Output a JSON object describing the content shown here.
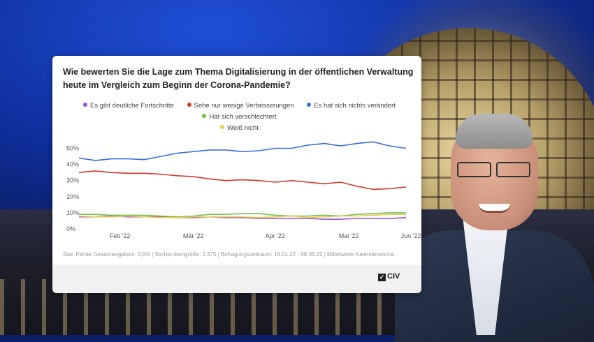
{
  "card": {
    "title": "Wie bewerten Sie die Lage zum Thema Digitalisierung in der öffentlichen Verwaltung heute im Vergleich zum Beginn der Corona-Pandemie?",
    "footnote": "Stat. Fehler Gesamtergebnis: 3,5% | Stichprobengröße: 2.475 | Befragungszeitraum: 19.01.22 - 06.06.22 | Mittelwerte Kalenderwoche",
    "logo_text": "CIV"
  },
  "chart_data": {
    "type": "line",
    "title": "Wie bewerten Sie die Lage zum Thema Digitalisierung in der öffentlichen Verwaltung heute im Vergleich zum Beginn der Corona-Pandemie?",
    "xlabel": "",
    "ylabel": "",
    "x_tick_labels": [
      "Feb '22",
      "Mär '22",
      "Apr '22",
      "Mai '22",
      "Jun '22"
    ],
    "y_tick_labels": [
      "0%",
      "10%",
      "20%",
      "30%",
      "40%",
      "50%"
    ],
    "ylim": [
      0,
      55
    ],
    "grid": false,
    "legend_position": "top",
    "x": [
      "KW3",
      "KW4",
      "KW5",
      "KW6",
      "KW7",
      "KW8",
      "KW9",
      "KW10",
      "KW11",
      "KW12",
      "KW13",
      "KW14",
      "KW15",
      "KW16",
      "KW17",
      "KW18",
      "KW19",
      "KW20",
      "KW21",
      "KW22",
      "KW23"
    ],
    "series": [
      {
        "name": "Es gibt deutliche Fortschritte",
        "color": "#9b4fd4",
        "values": [
          7.5,
          7.5,
          8,
          7.5,
          7.5,
          7.5,
          7,
          7,
          7.5,
          7,
          7,
          6.5,
          6.5,
          6.5,
          6.5,
          6,
          6,
          6.5,
          6.5,
          6.5,
          7
        ]
      },
      {
        "name": "Sehe nur wenige Verbesserungen",
        "color": "#d6372c",
        "values": [
          35,
          36,
          35,
          34.5,
          34.5,
          34,
          33,
          32.5,
          31,
          30,
          30.5,
          30,
          29,
          30,
          29,
          28,
          29,
          26.5,
          24.5,
          25,
          26
        ]
      },
      {
        "name": "Es hat sich nichts verändert",
        "color": "#3b6fdb",
        "values": [
          44,
          42.5,
          43.5,
          43.5,
          43,
          45,
          47,
          48,
          49,
          49,
          48,
          48.5,
          50,
          50,
          52,
          53,
          51.5,
          53,
          54,
          51.5,
          50
        ]
      },
      {
        "name": "Hat sich verschlechtert",
        "color": "#6cc24a",
        "values": [
          9,
          9,
          8.5,
          8.5,
          8.5,
          8,
          7.5,
          8,
          9,
          9,
          9.5,
          9.5,
          8.5,
          8,
          8,
          8.5,
          8,
          9,
          9.5,
          10,
          10
        ]
      },
      {
        "name": "Weiß nicht",
        "color": "#f2c94c",
        "values": [
          8,
          7.5,
          7.5,
          8,
          7.5,
          7,
          7,
          7.5,
          7.5,
          7.5,
          7.5,
          7,
          7.5,
          8,
          7,
          7.5,
          8,
          8,
          8.5,
          9,
          9
        ]
      }
    ]
  }
}
